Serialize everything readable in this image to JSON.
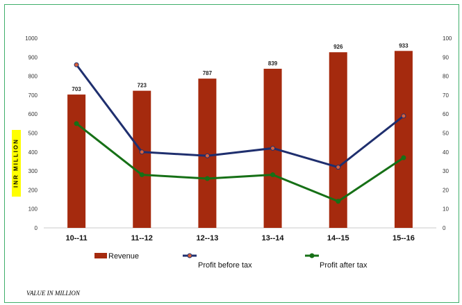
{
  "chart_data": {
    "type": "bar",
    "categories": [
      "10--11",
      "11--12",
      "12--13",
      "13--14",
      "14--15",
      "15--16"
    ],
    "series": [
      {
        "name": "Revenue",
        "type": "bar",
        "axis": "left",
        "color": "#a52a0e",
        "values": [
          703,
          723,
          787,
          839,
          926,
          933
        ],
        "labels": [
          "703",
          "723",
          "787",
          "839",
          "926",
          "933"
        ]
      },
      {
        "name": "Profit before tax",
        "type": "line",
        "axis": "right",
        "color": "#1f2f6e",
        "marker_color": "#d9613a",
        "values": [
          86,
          40,
          38,
          42,
          32,
          59
        ]
      },
      {
        "name": "Profit after tax",
        "type": "line",
        "axis": "right",
        "color": "#167016",
        "marker_color": "#167016",
        "values": [
          55,
          28,
          26,
          28,
          14,
          37
        ]
      }
    ],
    "ylabel": "INR MILLION",
    "ylim": [
      0,
      1000
    ],
    "yticks": [
      "0",
      "100",
      "200",
      "300",
      "400",
      "500",
      "600",
      "700",
      "800",
      "900",
      "1000"
    ],
    "y2lim": [
      0,
      100
    ],
    "y2ticks": [
      "0",
      "10",
      "20",
      "30",
      "40",
      "50",
      "60",
      "70",
      "80",
      "90",
      "100"
    ],
    "grid": false,
    "legend_position": "bottom"
  },
  "footnote": "VALUE IN MILLION",
  "colors": {
    "frame": "#3fae6a",
    "ylabel_bg": "#ffff00"
  }
}
